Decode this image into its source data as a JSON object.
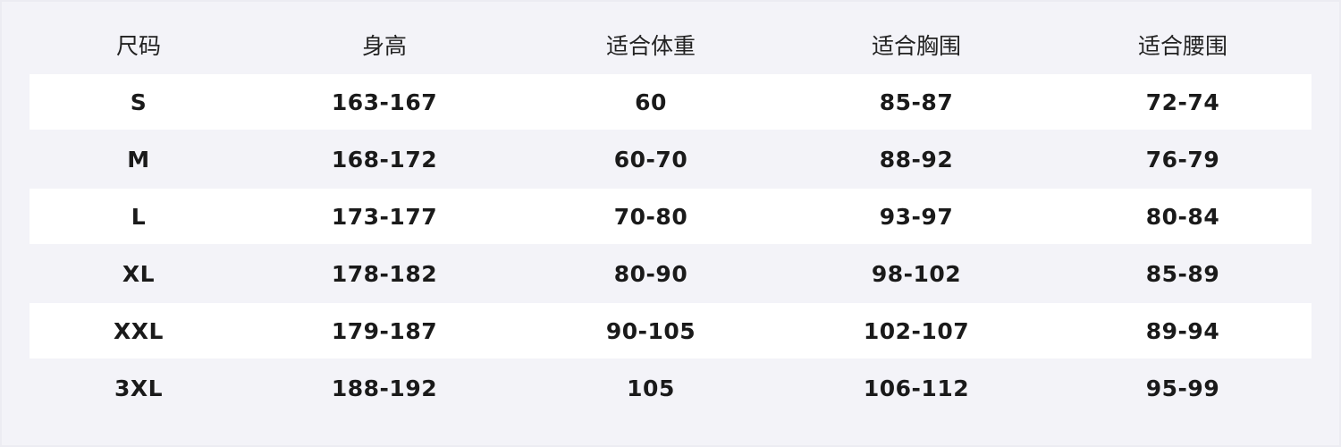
{
  "table": {
    "header": [
      "尺码",
      "身高",
      "适合体重",
      "适合胸围",
      "适合腰围"
    ],
    "rows": [
      [
        "S",
        "163-167",
        "60",
        "85-87",
        "72-74"
      ],
      [
        "M",
        "168-172",
        "60-70",
        "88-92",
        "76-79"
      ],
      [
        "L",
        "173-177",
        "70-80",
        "93-97",
        "80-84"
      ],
      [
        "XL",
        "178-182",
        "80-90",
        "98-102",
        "85-89"
      ],
      [
        "XXL",
        "179-187",
        "90-105",
        "102-107",
        "89-94"
      ],
      [
        "3XL",
        "188-192",
        "105",
        "106-112",
        "95-99"
      ]
    ]
  }
}
